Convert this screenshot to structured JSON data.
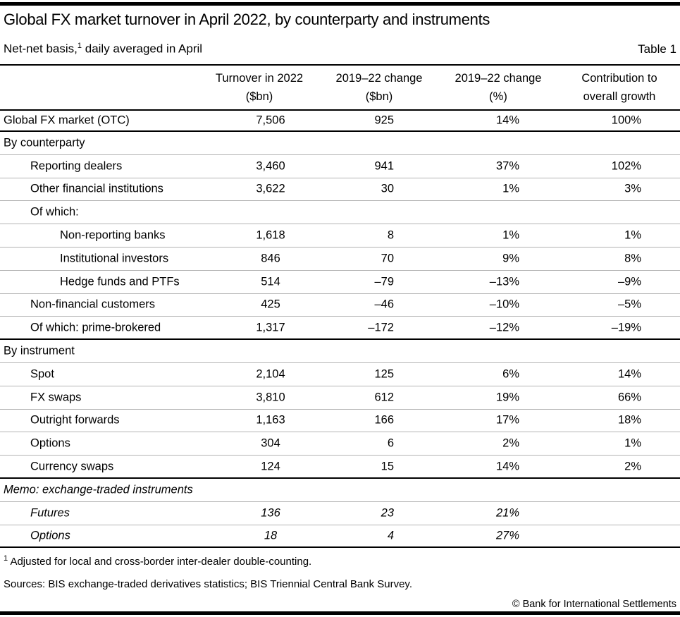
{
  "page": {
    "title": "Global FX market turnover in April 2022, by counterparty and instruments",
    "subtitle_prefix": "Net-net basis,",
    "subtitle_footnote_marker": "1",
    "subtitle_suffix": " daily averaged in April",
    "table_label": "Table 1"
  },
  "table": {
    "columns": [
      {
        "line1": "Turnover in 2022",
        "line2": "($bn)"
      },
      {
        "line1": "2019–22 change",
        "line2": "($bn)"
      },
      {
        "line1": "2019–22 change",
        "line2": "(%)"
      },
      {
        "line1": "Contribution to",
        "line2": "overall growth"
      }
    ],
    "rows": [
      {
        "label": "Global FX market (OTC)",
        "indent": 0,
        "style": "total",
        "values": [
          "7,506",
          "925",
          "14%",
          "100%"
        ]
      },
      {
        "label": "By counterparty",
        "indent": 0,
        "style": "section",
        "values": [
          "",
          "",
          "",
          ""
        ]
      },
      {
        "label": "Reporting dealers",
        "indent": 1,
        "style": "data",
        "values": [
          "3,460",
          "941",
          "37%",
          "102%"
        ]
      },
      {
        "label": "Other financial institutions",
        "indent": 1,
        "style": "data",
        "values": [
          "3,622",
          "30",
          "1%",
          "3%"
        ]
      },
      {
        "label": "Of which:",
        "indent": 1,
        "style": "subheading",
        "values": [
          "",
          "",
          "",
          ""
        ]
      },
      {
        "label": "Non-reporting banks",
        "indent": 2,
        "style": "data",
        "values": [
          "1,618",
          "8",
          "1%",
          "1%"
        ]
      },
      {
        "label": "Institutional investors",
        "indent": 2,
        "style": "data",
        "values": [
          "846",
          "70",
          "9%",
          "8%"
        ]
      },
      {
        "label": "Hedge funds and PTFs",
        "indent": 2,
        "style": "data",
        "values": [
          "514",
          "–79",
          "–13%",
          "–9%"
        ]
      },
      {
        "label": "Non-financial customers",
        "indent": 1,
        "style": "data",
        "values": [
          "425",
          "–46",
          "–10%",
          "–5%"
        ]
      },
      {
        "label": "Of which: prime-brokered",
        "indent": 1,
        "style": "data",
        "values": [
          "1,317",
          "–172",
          "–12%",
          "–19%"
        ]
      },
      {
        "label": "By instrument",
        "indent": 0,
        "style": "section",
        "values": [
          "",
          "",
          "",
          ""
        ]
      },
      {
        "label": "Spot",
        "indent": 1,
        "style": "data",
        "values": [
          "2,104",
          "125",
          "6%",
          "14%"
        ]
      },
      {
        "label": "FX swaps",
        "indent": 1,
        "style": "data",
        "values": [
          "3,810",
          "612",
          "19%",
          "66%"
        ]
      },
      {
        "label": "Outright forwards",
        "indent": 1,
        "style": "data",
        "values": [
          "1,163",
          "166",
          "17%",
          "18%"
        ]
      },
      {
        "label": "Options",
        "indent": 1,
        "style": "data",
        "values": [
          "304",
          "6",
          "2%",
          "1%"
        ]
      },
      {
        "label": "Currency swaps",
        "indent": 1,
        "style": "data",
        "values": [
          "124",
          "15",
          "14%",
          "2%"
        ]
      },
      {
        "label": "Memo: exchange-traded instruments",
        "indent": 0,
        "style": "memo-section",
        "values": [
          "",
          "",
          "",
          ""
        ]
      },
      {
        "label": "Futures",
        "indent": 1,
        "style": "memo",
        "values": [
          "136",
          "23",
          "21%",
          ""
        ]
      },
      {
        "label": "Options",
        "indent": 1,
        "style": "memo",
        "values": [
          "18",
          "4",
          "27%",
          ""
        ]
      }
    ]
  },
  "footer": {
    "footnote_marker": "1",
    "footnote_text": " Adjusted for local and cross-border inter-dealer double-counting.",
    "sources": "Sources: BIS exchange-traded derivatives statistics; BIS Triennial Central Bank Survey.",
    "copyright": "© Bank for International Settlements"
  },
  "colors": {
    "text": "#000000",
    "section_rule": "#000000",
    "row_rule": "#b3b3b3",
    "background": "#ffffff"
  }
}
